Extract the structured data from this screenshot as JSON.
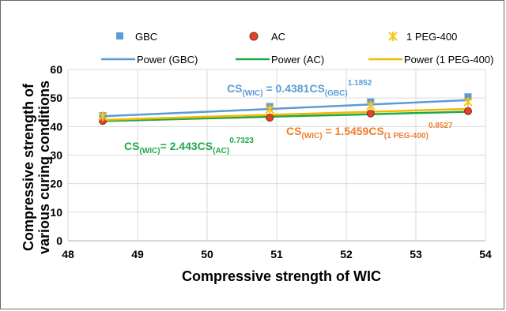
{
  "chart_data": {
    "type": "scatter",
    "xlabel": "Compressive strength of WIC",
    "ylabel_lines": [
      "Compressive strength of",
      "various curing conditions"
    ],
    "xlim": [
      48,
      54
    ],
    "ylim": [
      0,
      60
    ],
    "x_ticks": [
      "48",
      "49",
      "50",
      "51",
      "52",
      "53",
      "54"
    ],
    "y_ticks": [
      "0",
      "10",
      "20",
      "30",
      "40",
      "50",
      "60"
    ],
    "grid": true,
    "legend_position": "top",
    "series": [
      {
        "name": "GBC",
        "marker": "square",
        "color": "#5b9bd5",
        "points": [
          [
            48.5,
            43.8
          ],
          [
            50.9,
            47.0
          ],
          [
            52.35,
            48.6
          ],
          [
            53.75,
            50.4
          ]
        ]
      },
      {
        "name": "AC",
        "marker": "circle",
        "color": "#e8402a",
        "points": [
          [
            48.5,
            42.0
          ],
          [
            50.9,
            43.1
          ],
          [
            52.35,
            44.6
          ],
          [
            53.75,
            45.4
          ]
        ]
      },
      {
        "name": "1 PEG-400",
        "marker": "star",
        "color": "#f5c518",
        "points": [
          [
            48.5,
            43.6
          ],
          [
            50.9,
            46.0
          ],
          [
            52.35,
            47.3
          ],
          [
            53.75,
            48.6
          ]
        ]
      }
    ],
    "trendlines": [
      {
        "name": "Power (GBC)",
        "color": "#5b9bd5",
        "coef": 0.4381,
        "exp": 1.1852
      },
      {
        "name": "Power (AC)",
        "color": "#1fa84a",
        "coef": 2.443,
        "exp": 0.7323
      },
      {
        "name": "Power (1 PEG-400)",
        "color": "#f5b800",
        "coef": 1.5459,
        "exp": 0.8527
      }
    ],
    "annotations": [
      {
        "id": "gbc",
        "color": "#5b9bd5",
        "main": "CS",
        "sub1": "(WIC)",
        "mid": " = 0.4381CS",
        "sub2": "(GBC)",
        "sup": "1.1852"
      },
      {
        "id": "peg",
        "color": "#ed7d31",
        "main": "CS",
        "sub1": "(WIC)",
        "mid": " = 1.5459CS",
        "sub2": "(1 PEG-400)",
        "sup": "0.8527"
      },
      {
        "id": "ac",
        "color": "#1fa84a",
        "main": "CS",
        "sub1": "(WIC)",
        "mid": "= 2.443CS",
        "sub2": "(AC)",
        "sup": "0.7323"
      }
    ]
  }
}
